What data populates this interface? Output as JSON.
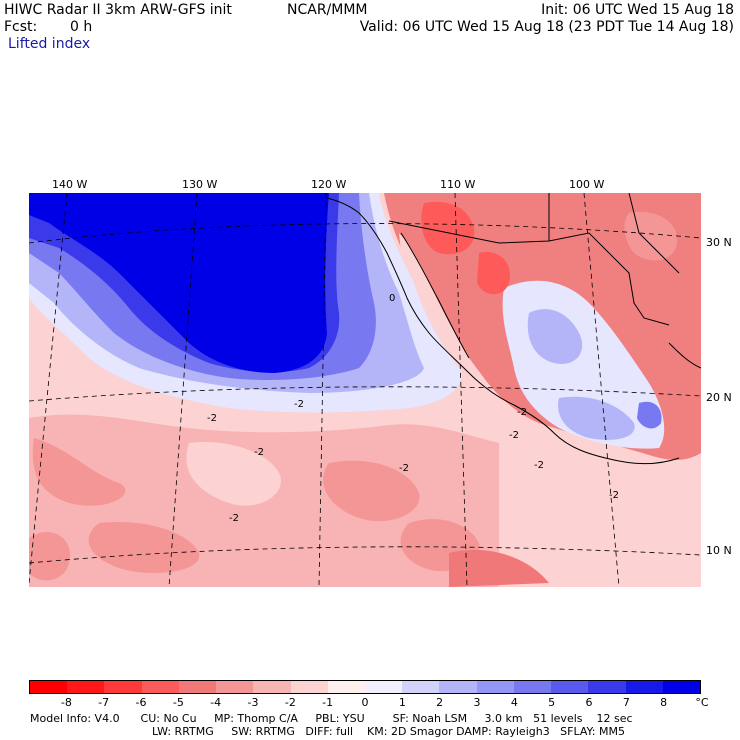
{
  "header": {
    "model_title": "HIWC Radar II 3km ARW-GFS init",
    "center": "NCAR/MMM",
    "init": "Init: 06 UTC Wed 15 Aug 18",
    "fcst_label": "Fcst:",
    "fcst_value": "0 h",
    "valid": "Valid: 06 UTC Wed 15 Aug 18 (23 PDT Tue 14 Aug 18)",
    "field": "Lifted index"
  },
  "map": {
    "lon_labels": [
      "140 W",
      "130 W",
      "120 W",
      "110 W",
      "100 W"
    ],
    "lat_labels": [
      "30 N",
      "20 N",
      "10 N"
    ],
    "contour_labels": [
      "0",
      "-2",
      "-2",
      "-2",
      "-2",
      "-2",
      "-2",
      "-2",
      "-2",
      "-2"
    ],
    "colors": {
      "strong_positive": "#0000e6",
      "land_negative": "#f08080",
      "ocean_slight_negative": "#ffc8c8"
    }
  },
  "colorbar": {
    "labels": [
      "-8",
      "-7",
      "-6",
      "-5",
      "-4",
      "-3",
      "-2",
      "-1",
      "0",
      "1",
      "2",
      "3",
      "4",
      "5",
      "6",
      "7",
      "8"
    ],
    "unit": "°C",
    "colors": [
      "#ff0000",
      "#ff1818",
      "#ff3a3a",
      "#ff5a5a",
      "#f07878",
      "#f49696",
      "#f8b4b4",
      "#fcd2d2",
      "#fff0f0",
      "#f0f0ff",
      "#d2d2fc",
      "#b4b4f8",
      "#9696f4",
      "#7878f0",
      "#5a5aee",
      "#3a3aeb",
      "#1818e8",
      "#0000e6"
    ]
  },
  "footer": {
    "line1": "Model Info: V4.0      CU: No Cu     MP: Thomp C/A     PBL: YSU        SF: Noah LSM     3.0 km   51 levels    12 sec",
    "line2": "LW: RRTMG     SW: RRTMG   DIFF: full    KM: 2D Smagor DAMP: Rayleigh3   SFLAY: MM5"
  }
}
